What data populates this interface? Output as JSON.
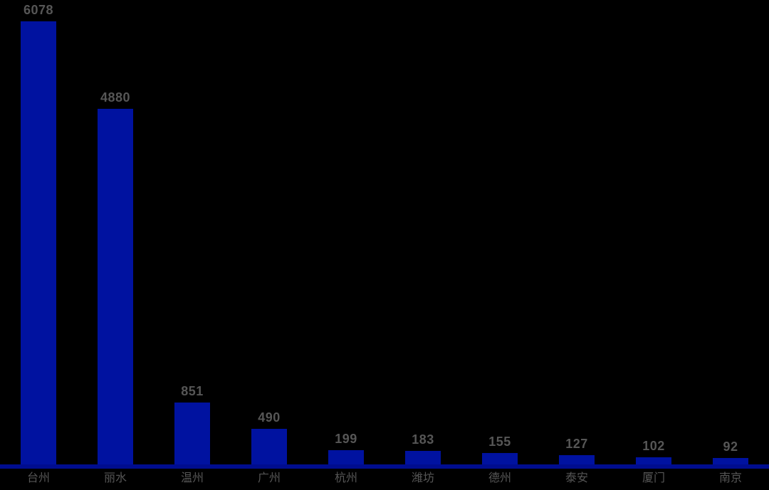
{
  "chart_data": {
    "type": "bar",
    "categories": [
      "台州",
      "丽水",
      "温州",
      "广州",
      "杭州",
      "潍坊",
      "德州",
      "泰安",
      "厦门",
      "南京"
    ],
    "values": [
      6078,
      4880,
      851,
      490,
      199,
      183,
      155,
      127,
      102,
      92
    ],
    "title": "",
    "xlabel": "",
    "ylabel": "",
    "ylim": [
      0,
      6078
    ],
    "grid": false,
    "legend": false,
    "data_labels": true,
    "colors": {
      "background": "#000000",
      "bar": "#0012A0",
      "axis_line": "#000D8F",
      "text": "#565656"
    }
  }
}
